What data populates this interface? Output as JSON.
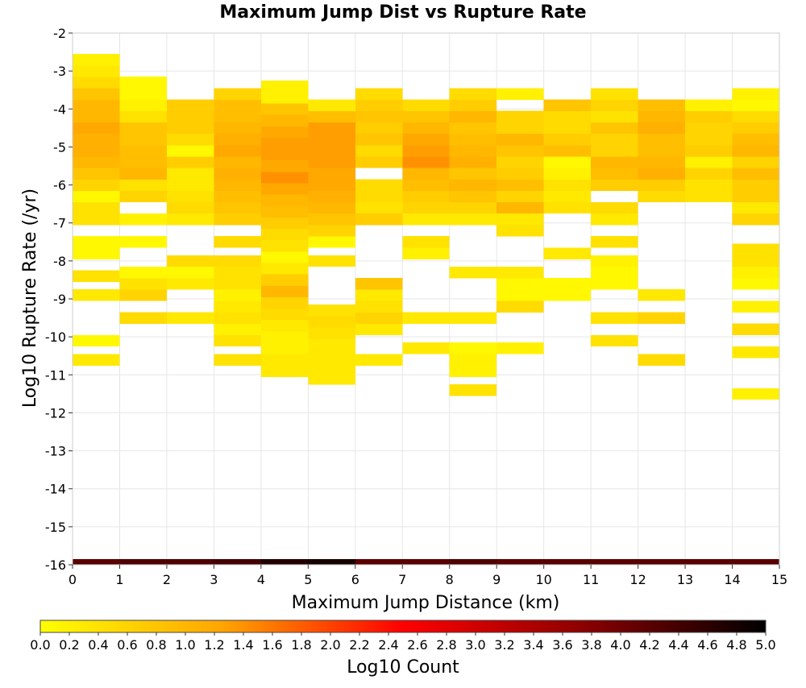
{
  "chart_data": {
    "type": "heatmap",
    "title": "Maximum Jump Dist vs Rupture Rate",
    "xlabel": "Maximum Jump Distance (km)",
    "ylabel": "Log10 Rupture Rate (/yr)",
    "xlim": [
      0,
      15
    ],
    "ylim": [
      -16,
      -2
    ],
    "x_bin_width": 1,
    "y_bin_width": 0.3,
    "grid": true,
    "x_ticks": [
      "0",
      "1",
      "2",
      "3",
      "4",
      "5",
      "6",
      "7",
      "8",
      "9",
      "10",
      "11",
      "12",
      "13",
      "14",
      "15"
    ],
    "y_ticks": [
      "-2",
      "-3",
      "-4",
      "-5",
      "-6",
      "-7",
      "-8",
      "-9",
      "-10",
      "-11",
      "-12",
      "-13",
      "-14",
      "-15",
      "-16"
    ],
    "colorbar": {
      "title": "Log10 Count",
      "range": [
        0,
        5
      ],
      "position": "bottom",
      "ticks": [
        "0.0",
        "0.2",
        "0.4",
        "0.6",
        "0.8",
        "1.0",
        "1.2",
        "1.4",
        "1.6",
        "1.8",
        "2.0",
        "2.2",
        "2.4",
        "2.6",
        "2.8",
        "3.0",
        "3.2",
        "3.4",
        "3.6",
        "3.8",
        "4.0",
        "4.2",
        "4.4",
        "4.6",
        "4.8",
        "5.0"
      ],
      "colors": [
        "#ffff00",
        "#ffa500",
        "#ff0000",
        "#8b0000",
        "#000000"
      ]
    },
    "columns": [
      {
        "x": 0,
        "cells": [
          [
            -16.0,
            4.2
          ],
          [
            -10.6,
            0.3
          ],
          [
            -10.1,
            0.1
          ],
          [
            -8.9,
            0.3
          ],
          [
            -8.4,
            0.4
          ],
          [
            -7.8,
            0.1
          ],
          [
            -7.5,
            0.1
          ],
          [
            -6.9,
            0.4
          ],
          [
            -6.6,
            0.4
          ],
          [
            -6.3,
            0.1
          ],
          [
            -6.0,
            0.6
          ],
          [
            -5.7,
            0.8
          ],
          [
            -5.4,
            1.0
          ],
          [
            -5.1,
            1.1
          ],
          [
            -4.8,
            1.1
          ],
          [
            -4.5,
            1.2
          ],
          [
            -4.2,
            1.0
          ],
          [
            -3.9,
            1.0
          ],
          [
            -3.6,
            0.8
          ],
          [
            -3.3,
            0.5
          ],
          [
            -3.0,
            0.3
          ],
          [
            -2.7,
            0.2
          ]
        ]
      },
      {
        "x": 1,
        "cells": [
          [
            -16.0,
            4.3
          ],
          [
            -9.5,
            0.5
          ],
          [
            -8.9,
            0.6
          ],
          [
            -8.6,
            0.4
          ],
          [
            -8.3,
            0.1
          ],
          [
            -7.5,
            0.1
          ],
          [
            -6.9,
            0.2
          ],
          [
            -6.3,
            0.6
          ],
          [
            -6.0,
            0.4
          ],
          [
            -5.7,
            1.0
          ],
          [
            -5.4,
            0.9
          ],
          [
            -5.1,
            0.9
          ],
          [
            -4.8,
            0.8
          ],
          [
            -4.5,
            0.8
          ],
          [
            -4.2,
            0.4
          ],
          [
            -3.9,
            0.2
          ],
          [
            -3.6,
            0.1
          ],
          [
            -3.3,
            0.1
          ]
        ]
      },
      {
        "x": 2,
        "cells": [
          [
            -16.0,
            4.3
          ],
          [
            -9.5,
            0.3
          ],
          [
            -8.6,
            0.3
          ],
          [
            -8.3,
            0.1
          ],
          [
            -8.0,
            0.5
          ],
          [
            -6.9,
            0.3
          ],
          [
            -6.6,
            0.5
          ],
          [
            -6.3,
            0.4
          ],
          [
            -6.0,
            0.3
          ],
          [
            -5.7,
            0.3
          ],
          [
            -5.4,
            0.7
          ],
          [
            -5.1,
            0.1
          ],
          [
            -4.8,
            0.5
          ],
          [
            -4.5,
            0.7
          ],
          [
            -4.2,
            0.7
          ],
          [
            -3.9,
            0.7
          ]
        ]
      },
      {
        "x": 3,
        "cells": [
          [
            -16.0,
            4.4
          ],
          [
            -10.6,
            0.4
          ],
          [
            -10.1,
            0.4
          ],
          [
            -9.8,
            0.2
          ],
          [
            -9.5,
            0.4
          ],
          [
            -9.2,
            0.3
          ],
          [
            -8.9,
            0.2
          ],
          [
            -8.6,
            0.4
          ],
          [
            -8.3,
            0.4
          ],
          [
            -8.0,
            0.5
          ],
          [
            -7.5,
            0.5
          ],
          [
            -6.9,
            0.7
          ],
          [
            -6.6,
            0.8
          ],
          [
            -6.3,
            0.9
          ],
          [
            -6.0,
            1.0
          ],
          [
            -5.7,
            1.1
          ],
          [
            -5.4,
            1.0
          ],
          [
            -5.1,
            1.2
          ],
          [
            -4.8,
            1.1
          ],
          [
            -4.5,
            1.0
          ],
          [
            -4.2,
            0.9
          ],
          [
            -3.9,
            0.9
          ],
          [
            -3.6,
            0.6
          ]
        ]
      },
      {
        "x": 4,
        "cells": [
          [
            -16.0,
            4.7
          ],
          [
            -10.9,
            0.3
          ],
          [
            -10.6,
            0.3
          ],
          [
            -10.3,
            0.2
          ],
          [
            -10.0,
            0.2
          ],
          [
            -9.7,
            0.3
          ],
          [
            -9.4,
            0.5
          ],
          [
            -9.1,
            0.6
          ],
          [
            -8.8,
            1.0
          ],
          [
            -8.5,
            0.7
          ],
          [
            -8.2,
            0.3
          ],
          [
            -7.9,
            0.1
          ],
          [
            -7.6,
            0.4
          ],
          [
            -7.3,
            0.5
          ],
          [
            -7.0,
            0.7
          ],
          [
            -6.7,
            0.9
          ],
          [
            -6.4,
            1.0
          ],
          [
            -6.1,
            1.2
          ],
          [
            -5.8,
            1.4
          ],
          [
            -5.5,
            1.2
          ],
          [
            -5.2,
            1.3
          ],
          [
            -4.9,
            1.3
          ],
          [
            -4.6,
            1.2
          ],
          [
            -4.3,
            1.0
          ],
          [
            -4.0,
            0.8
          ],
          [
            -3.7,
            0.2
          ],
          [
            -3.4,
            0.2
          ]
        ]
      },
      {
        "x": 5,
        "cells": [
          [
            -16.0,
            4.8
          ],
          [
            -11.1,
            0.3
          ],
          [
            -10.8,
            0.3
          ],
          [
            -10.5,
            0.3
          ],
          [
            -10.2,
            0.3
          ],
          [
            -9.9,
            0.4
          ],
          [
            -9.6,
            0.5
          ],
          [
            -9.3,
            0.4
          ],
          [
            -8.0,
            0.4
          ],
          [
            -7.5,
            0.1
          ],
          [
            -7.2,
            0.6
          ],
          [
            -6.9,
            0.8
          ],
          [
            -6.6,
            1.0
          ],
          [
            -6.3,
            1.1
          ],
          [
            -6.0,
            1.2
          ],
          [
            -5.7,
            1.2
          ],
          [
            -5.4,
            1.3
          ],
          [
            -5.1,
            1.3
          ],
          [
            -4.8,
            1.3
          ],
          [
            -4.5,
            1.3
          ],
          [
            -4.2,
            0.9
          ],
          [
            -3.9,
            0.3
          ]
        ]
      },
      {
        "x": 6,
        "cells": [
          [
            -16.0,
            4.2
          ],
          [
            -10.6,
            0.3
          ],
          [
            -9.8,
            0.3
          ],
          [
            -9.5,
            0.6
          ],
          [
            -9.2,
            0.4
          ],
          [
            -8.9,
            0.3
          ],
          [
            -8.6,
            0.8
          ],
          [
            -6.9,
            0.7
          ],
          [
            -6.6,
            0.4
          ],
          [
            -6.3,
            0.5
          ],
          [
            -6.0,
            0.5
          ],
          [
            -5.4,
            0.7
          ],
          [
            -5.1,
            0.5
          ],
          [
            -4.8,
            0.8
          ],
          [
            -4.5,
            0.7
          ],
          [
            -4.2,
            0.8
          ],
          [
            -3.9,
            0.7
          ],
          [
            -3.6,
            0.5
          ]
        ]
      },
      {
        "x": 7,
        "cells": [
          [
            -16.0,
            4.2
          ],
          [
            -10.3,
            0.3
          ],
          [
            -9.5,
            0.3
          ],
          [
            -7.8,
            0.2
          ],
          [
            -7.5,
            0.4
          ],
          [
            -6.9,
            0.3
          ],
          [
            -6.6,
            0.6
          ],
          [
            -6.3,
            0.7
          ],
          [
            -6.0,
            0.9
          ],
          [
            -5.7,
            1.0
          ],
          [
            -5.4,
            1.4
          ],
          [
            -5.1,
            1.3
          ],
          [
            -4.8,
            1.2
          ],
          [
            -4.5,
            1.0
          ],
          [
            -4.2,
            0.8
          ],
          [
            -3.9,
            0.5
          ]
        ]
      },
      {
        "x": 8,
        "cells": [
          [
            -16.0,
            4.3
          ],
          [
            -11.4,
            0.4
          ],
          [
            -10.9,
            0.2
          ],
          [
            -10.6,
            0.2
          ],
          [
            -10.3,
            0.1
          ],
          [
            -9.5,
            0.3
          ],
          [
            -8.3,
            0.3
          ],
          [
            -6.9,
            0.3
          ],
          [
            -6.6,
            0.6
          ],
          [
            -6.3,
            0.8
          ],
          [
            -6.0,
            1.0
          ],
          [
            -5.7,
            0.8
          ],
          [
            -5.4,
            1.1
          ],
          [
            -5.1,
            1.0
          ],
          [
            -4.8,
            0.9
          ],
          [
            -4.5,
            0.8
          ],
          [
            -4.2,
            1.0
          ],
          [
            -3.9,
            0.7
          ],
          [
            -3.6,
            0.5
          ]
        ]
      },
      {
        "x": 9,
        "cells": [
          [
            -16.0,
            4.2
          ],
          [
            -10.3,
            0.2
          ],
          [
            -9.2,
            0.5
          ],
          [
            -8.9,
            0.1
          ],
          [
            -8.6,
            0.1
          ],
          [
            -8.3,
            0.3
          ],
          [
            -7.2,
            0.4
          ],
          [
            -6.9,
            0.3
          ],
          [
            -6.6,
            1.0
          ],
          [
            -6.3,
            0.6
          ],
          [
            -6.0,
            0.9
          ],
          [
            -5.7,
            0.7
          ],
          [
            -5.4,
            0.6
          ],
          [
            -5.1,
            0.8
          ],
          [
            -4.8,
            1.0
          ],
          [
            -4.5,
            0.6
          ],
          [
            -4.2,
            0.6
          ],
          [
            -3.6,
            0.2
          ]
        ]
      },
      {
        "x": 10,
        "cells": [
          [
            -16.0,
            4.2
          ],
          [
            -8.9,
            0.1
          ],
          [
            -8.6,
            0.1
          ],
          [
            -7.8,
            0.3
          ],
          [
            -6.6,
            0.4
          ],
          [
            -6.3,
            0.3
          ],
          [
            -6.0,
            0.4
          ],
          [
            -5.7,
            0.2
          ],
          [
            -5.4,
            0.1
          ],
          [
            -5.1,
            0.9
          ],
          [
            -4.8,
            0.7
          ],
          [
            -4.5,
            0.5
          ],
          [
            -4.2,
            0.5
          ],
          [
            -3.9,
            0.8
          ]
        ]
      },
      {
        "x": 11,
        "cells": [
          [
            -16.0,
            4.2
          ],
          [
            -10.1,
            0.4
          ],
          [
            -9.5,
            0.4
          ],
          [
            -8.6,
            0.1
          ],
          [
            -8.3,
            0.1
          ],
          [
            -8.0,
            0.2
          ],
          [
            -7.5,
            0.4
          ],
          [
            -6.9,
            0.3
          ],
          [
            -6.6,
            0.5
          ],
          [
            -6.0,
            0.7
          ],
          [
            -5.7,
            0.9
          ],
          [
            -5.4,
            1.0
          ],
          [
            -5.1,
            0.6
          ],
          [
            -4.8,
            0.6
          ],
          [
            -4.5,
            0.8
          ],
          [
            -4.2,
            0.4
          ],
          [
            -3.9,
            0.6
          ],
          [
            -3.6,
            0.4
          ]
        ]
      },
      {
        "x": 12,
        "cells": [
          [
            -16.0,
            4.2
          ],
          [
            -10.6,
            0.5
          ],
          [
            -9.5,
            0.6
          ],
          [
            -8.9,
            0.3
          ],
          [
            -6.3,
            0.5
          ],
          [
            -6.0,
            0.7
          ],
          [
            -5.7,
            1.1
          ],
          [
            -5.4,
            1.0
          ],
          [
            -5.1,
            0.9
          ],
          [
            -4.8,
            0.9
          ],
          [
            -4.5,
            1.1
          ],
          [
            -4.2,
            1.0
          ],
          [
            -3.9,
            0.9
          ]
        ]
      },
      {
        "x": 13,
        "cells": [
          [
            -16.0,
            4.2
          ],
          [
            -6.3,
            0.4
          ],
          [
            -6.0,
            0.4
          ],
          [
            -5.7,
            0.6
          ],
          [
            -5.4,
            0.2
          ],
          [
            -5.1,
            0.7
          ],
          [
            -4.8,
            0.6
          ],
          [
            -4.5,
            0.6
          ],
          [
            -4.2,
            0.7
          ],
          [
            -3.9,
            0.2
          ]
        ]
      },
      {
        "x": 14,
        "cells": [
          [
            -16.0,
            4.2
          ],
          [
            -11.5,
            0.2
          ],
          [
            -10.4,
            0.3
          ],
          [
            -9.8,
            0.5
          ],
          [
            -9.2,
            0.2
          ],
          [
            -8.6,
            0.1
          ],
          [
            -8.3,
            0.2
          ],
          [
            -8.0,
            0.4
          ],
          [
            -7.7,
            0.4
          ],
          [
            -6.9,
            0.6
          ],
          [
            -6.6,
            0.3
          ],
          [
            -6.3,
            0.7
          ],
          [
            -6.0,
            0.7
          ],
          [
            -5.7,
            0.9
          ],
          [
            -5.4,
            0.6
          ],
          [
            -5.1,
            1.0
          ],
          [
            -4.8,
            0.9
          ],
          [
            -4.5,
            0.7
          ],
          [
            -4.2,
            0.5
          ],
          [
            -3.9,
            0.1
          ],
          [
            -3.6,
            0.2
          ]
        ]
      }
    ]
  }
}
